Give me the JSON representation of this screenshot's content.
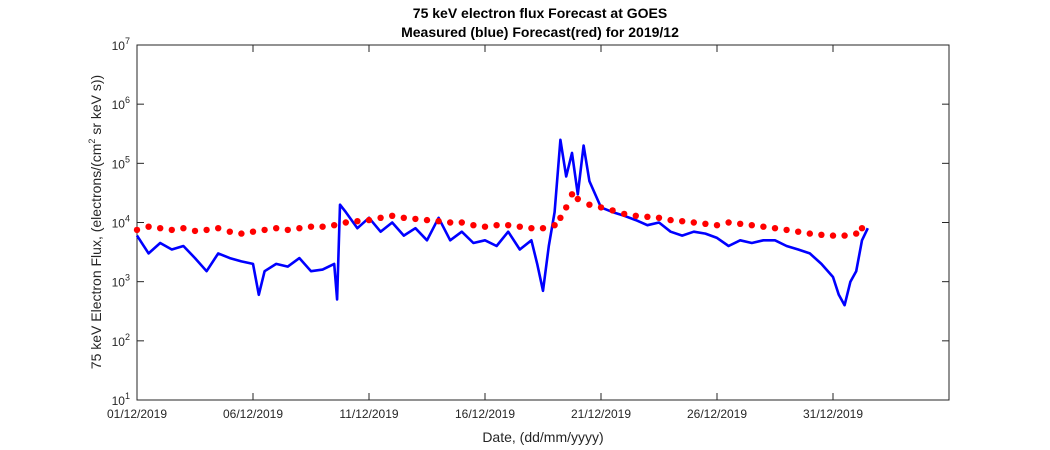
{
  "chart_data": {
    "type": "line",
    "title": "75 keV electron flux Forecast at GOES",
    "subtitle": "Measured (blue) Forecast(red) for 2019/12",
    "xlabel": "Date, (dd/mm/yyyy)",
    "ylabel": "75 keV Electron Flux, (electrons/(cm^2 sr keV s))",
    "ylabel_parts": {
      "pre": "75 keV Electron Flux, (electrons/(cm",
      "sup": "2",
      "post": " sr keV s))"
    },
    "xscale": "date",
    "yscale": "log",
    "xlim": [
      "2019-12-01",
      "2020-01-05"
    ],
    "ylim": [
      10,
      10000000
    ],
    "grid": false,
    "x_ticks": [
      {
        "date": "2019-12-01",
        "label": "01/12/2019"
      },
      {
        "date": "2019-12-06",
        "label": "06/12/2019"
      },
      {
        "date": "2019-12-11",
        "label": "11/12/2019"
      },
      {
        "date": "2019-12-16",
        "label": "16/12/2019"
      },
      {
        "date": "2019-12-21",
        "label": "21/12/2019"
      },
      {
        "date": "2019-12-26",
        "label": "26/12/2019"
      },
      {
        "date": "2019-12-31",
        "label": "31/12/2019"
      }
    ],
    "y_ticks": [
      {
        "value": 10,
        "base": "10",
        "exp": "1"
      },
      {
        "value": 100,
        "base": "10",
        "exp": "2"
      },
      {
        "value": 1000,
        "base": "10",
        "exp": "3"
      },
      {
        "value": 10000,
        "base": "10",
        "exp": "4"
      },
      {
        "value": 100000,
        "base": "10",
        "exp": "5"
      },
      {
        "value": 1000000,
        "base": "10",
        "exp": "6"
      },
      {
        "value": 10000000,
        "base": "10",
        "exp": "7"
      }
    ],
    "series": [
      {
        "name": "Measured",
        "style": "line",
        "color": "#0000ff",
        "x": [
          "2019-12-01",
          "2019-12-01T12:00",
          "2019-12-02",
          "2019-12-02T12:00",
          "2019-12-03",
          "2019-12-03T12:00",
          "2019-12-04",
          "2019-12-04T12:00",
          "2019-12-05",
          "2019-12-05T12:00",
          "2019-12-06",
          "2019-12-06T06:00",
          "2019-12-06T12:00",
          "2019-12-07",
          "2019-12-07T12:00",
          "2019-12-08",
          "2019-12-08T12:00",
          "2019-12-09",
          "2019-12-09T12:00",
          "2019-12-09T15:00",
          "2019-12-09T18:00",
          "2019-12-10",
          "2019-12-10T12:00",
          "2019-12-11",
          "2019-12-11T12:00",
          "2019-12-12",
          "2019-12-12T12:00",
          "2019-12-13",
          "2019-12-13T12:00",
          "2019-12-14",
          "2019-12-14T12:00",
          "2019-12-15",
          "2019-12-15T12:00",
          "2019-12-16",
          "2019-12-16T12:00",
          "2019-12-17",
          "2019-12-17T12:00",
          "2019-12-18",
          "2019-12-18T06:00",
          "2019-12-18T12:00",
          "2019-12-18T18:00",
          "2019-12-19",
          "2019-12-19T06:00",
          "2019-12-19T12:00",
          "2019-12-19T18:00",
          "2019-12-20",
          "2019-12-20T06:00",
          "2019-12-20T12:00",
          "2019-12-21",
          "2019-12-21T12:00",
          "2019-12-22",
          "2019-12-22T12:00",
          "2019-12-23",
          "2019-12-23T12:00",
          "2019-12-24",
          "2019-12-24T12:00",
          "2019-12-25",
          "2019-12-25T12:00",
          "2019-12-26",
          "2019-12-26T12:00",
          "2019-12-27",
          "2019-12-27T12:00",
          "2019-12-28",
          "2019-12-28T12:00",
          "2019-12-29",
          "2019-12-29T12:00",
          "2019-12-30",
          "2019-12-30T12:00",
          "2019-12-31",
          "2019-12-31T06:00",
          "2019-12-31T12:00",
          "2019-12-31T18:00",
          "2020-01-01",
          "2020-01-01T06:00",
          "2020-01-01T12:00"
        ],
        "y": [
          6000,
          3000,
          4500,
          3500,
          4000,
          2500,
          1500,
          3000,
          2500,
          2200,
          2000,
          600,
          1500,
          2000,
          1800,
          2500,
          1500,
          1600,
          2000,
          500,
          20000,
          15000,
          8000,
          12000,
          7000,
          10000,
          6000,
          8000,
          5000,
          12000,
          5000,
          7000,
          4500,
          5000,
          4000,
          7000,
          3500,
          5000,
          2000,
          700,
          4000,
          15000,
          250000,
          60000,
          150000,
          30000,
          200000,
          50000,
          18000,
          15000,
          13000,
          11000,
          9000,
          10000,
          7000,
          6000,
          7000,
          6500,
          5500,
          4000,
          5000,
          4500,
          5000,
          5000,
          4000,
          3500,
          3000,
          2000,
          1200,
          600,
          400,
          1000,
          1500,
          5000,
          8000
        ]
      },
      {
        "name": "Forecast",
        "style": "scatter",
        "color": "#ff0000",
        "x": [
          "2019-12-01",
          "2019-12-01T12:00",
          "2019-12-02",
          "2019-12-02T12:00",
          "2019-12-03",
          "2019-12-03T12:00",
          "2019-12-04",
          "2019-12-04T12:00",
          "2019-12-05",
          "2019-12-05T12:00",
          "2019-12-06",
          "2019-12-06T12:00",
          "2019-12-07",
          "2019-12-07T12:00",
          "2019-12-08",
          "2019-12-08T12:00",
          "2019-12-09",
          "2019-12-09T12:00",
          "2019-12-10",
          "2019-12-10T12:00",
          "2019-12-11",
          "2019-12-11T12:00",
          "2019-12-12",
          "2019-12-12T12:00",
          "2019-12-13",
          "2019-12-13T12:00",
          "2019-12-14",
          "2019-12-14T12:00",
          "2019-12-15",
          "2019-12-15T12:00",
          "2019-12-16",
          "2019-12-16T12:00",
          "2019-12-17",
          "2019-12-17T12:00",
          "2019-12-18",
          "2019-12-18T12:00",
          "2019-12-19",
          "2019-12-19T06:00",
          "2019-12-19T12:00",
          "2019-12-19T18:00",
          "2019-12-20",
          "2019-12-20T12:00",
          "2019-12-21",
          "2019-12-21T12:00",
          "2019-12-22",
          "2019-12-22T12:00",
          "2019-12-23",
          "2019-12-23T12:00",
          "2019-12-24",
          "2019-12-24T12:00",
          "2019-12-25",
          "2019-12-25T12:00",
          "2019-12-26",
          "2019-12-26T12:00",
          "2019-12-27",
          "2019-12-27T12:00",
          "2019-12-28",
          "2019-12-28T12:00",
          "2019-12-29",
          "2019-12-29T12:00",
          "2019-12-30",
          "2019-12-30T12:00",
          "2019-12-31",
          "2019-12-31T12:00",
          "2020-01-01",
          "2020-01-01T06:00"
        ],
        "y": [
          7500,
          8500,
          8000,
          7500,
          8000,
          7200,
          7500,
          8000,
          7000,
          6500,
          7000,
          7500,
          8000,
          7500,
          8000,
          8500,
          8500,
          9000,
          10000,
          10500,
          11000,
          12000,
          13000,
          12000,
          11500,
          11000,
          10500,
          10000,
          10000,
          9000,
          8500,
          9000,
          9000,
          8500,
          8000,
          8000,
          9000,
          12000,
          18000,
          30000,
          25000,
          20000,
          18000,
          16000,
          14000,
          13000,
          12500,
          12000,
          11000,
          10500,
          10000,
          9500,
          9000,
          10000,
          9500,
          9000,
          8500,
          8000,
          7500,
          7000,
          6500,
          6200,
          6000,
          6000,
          6500,
          8000
        ]
      }
    ]
  }
}
